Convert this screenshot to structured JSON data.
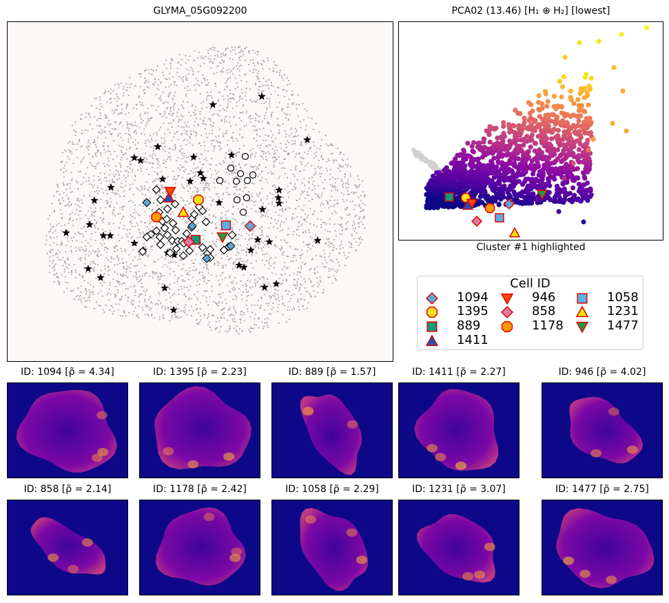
{
  "main_plot": {
    "title": "GLYMA_05G092200"
  },
  "pca_plot": {
    "title": "PCA02 (13.46) [H₁ ⊕ H₂] [lowest]",
    "xlabel": "Cluster #1 highlighted"
  },
  "legend": {
    "title": "Cell ID",
    "items": [
      {
        "id": "1094",
        "marker": "diamond",
        "fill": "#5aa9d8"
      },
      {
        "id": "1395",
        "marker": "octagon",
        "fill": "#ffe020"
      },
      {
        "id": "889",
        "marker": "square",
        "fill": "#119977"
      },
      {
        "id": "1411",
        "marker": "triangle-up",
        "fill": "#2050c0"
      },
      {
        "id": "946",
        "marker": "triangle-down",
        "fill": "#ff4a00"
      },
      {
        "id": "858",
        "marker": "diamond",
        "fill": "#e07aa0"
      },
      {
        "id": "1178",
        "marker": "octagon",
        "fill": "#ff9900"
      },
      {
        "id": "1058",
        "marker": "square",
        "fill": "#5ab0e0"
      },
      {
        "id": "1231",
        "marker": "triangle-up",
        "fill": "#ffe000"
      },
      {
        "id": "1477",
        "marker": "triangle-down",
        "fill": "#229944"
      }
    ]
  },
  "cells": [
    {
      "label": "ID: 1094 [ρ̃ = 4.34]"
    },
    {
      "label": "ID: 1395 [ρ̃ = 2.23]"
    },
    {
      "label": "ID: 889 [ρ̃ = 1.57]"
    },
    {
      "label": "ID: 1411 [ρ̃ = 2.27]"
    },
    {
      "label": "ID: 946 [ρ̃ = 4.02]"
    },
    {
      "label": "ID: 858 [ρ̃ = 2.14]"
    },
    {
      "label": "ID: 1178 [ρ̃ = 2.42]"
    },
    {
      "label": "ID: 1058 [ρ̃ = 2.29]"
    },
    {
      "label": "ID: 1231 [ρ̃ = 3.07]"
    },
    {
      "label": "ID: 1477 [ρ̃ = 2.75]"
    }
  ],
  "chart_data": [
    {
      "type": "scatter",
      "title": "GLYMA_05G092200",
      "note_series": [
        "background cells (grey)",
        "stars",
        "open diamonds",
        "open circles",
        "highlighted cell markers"
      ]
    },
    {
      "type": "scatter",
      "title": "PCA02 (13.46) [H₁ ⊕ H₂] [lowest]",
      "xlabel": "Cluster #1 highlighted",
      "colormap": "plasma"
    },
    {
      "type": "heatmap",
      "titles": [
        "ID: 1094 [ρ̃ = 4.34]",
        "ID: 1395 [ρ̃ = 2.23]",
        "ID: 889 [ρ̃ = 1.57]",
        "ID: 1411 [ρ̃ = 2.27]",
        "ID: 946 [ρ̃ = 4.02]",
        "ID: 858 [ρ̃ = 2.14]",
        "ID: 1178 [ρ̃ = 2.42]",
        "ID: 1058 [ρ̃ = 2.29]",
        "ID: 1231 [ρ̃ = 3.07]",
        "ID: 1477 [ρ̃ = 2.75]"
      ],
      "colormap": "plasma"
    }
  ]
}
